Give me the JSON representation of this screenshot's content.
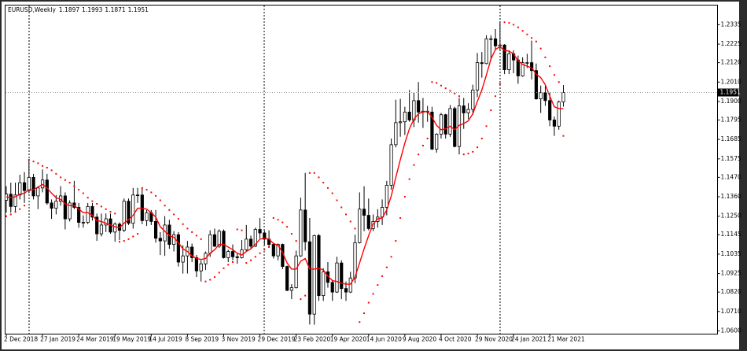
{
  "chart_data": {
    "type": "candlestick",
    "title": "EURUSD,Weekly",
    "categories": [
      "2 Dec 2018",
      null,
      null,
      null,
      null,
      null,
      null,
      null,
      "27 Jan 2019",
      null,
      null,
      null,
      null,
      null,
      null,
      null,
      "24 Mar 2019",
      null,
      null,
      null,
      null,
      null,
      null,
      null,
      "19 May 2019",
      null,
      null,
      null,
      null,
      null,
      null,
      null,
      "14 Jul 2019",
      null,
      null,
      null,
      null,
      null,
      null,
      null,
      "8 Sep 2019",
      null,
      null,
      null,
      null,
      null,
      null,
      null,
      "3 Nov 2019",
      null,
      null,
      null,
      null,
      null,
      null,
      null,
      "29 Dec 2019",
      null,
      null,
      null,
      null,
      null,
      null,
      null,
      "23 Feb 2020",
      null,
      null,
      null,
      null,
      null,
      null,
      null,
      "19 Apr 2020",
      null,
      null,
      null,
      null,
      null,
      null,
      null,
      "14 Jun 2020",
      null,
      null,
      null,
      null,
      null,
      null,
      null,
      "9 Aug 2020",
      null,
      null,
      null,
      null,
      null,
      null,
      null,
      "4 Oct 2020",
      null,
      null,
      null,
      null,
      null,
      null,
      null,
      "29 Nov 2020",
      null,
      null,
      null,
      null,
      null,
      null,
      null,
      "24 Jan 2021",
      null,
      null,
      null,
      null,
      null,
      null,
      null,
      "21 Mar 2021",
      null,
      null,
      null
    ],
    "open": [
      1.134,
      1.1375,
      1.1305,
      1.137,
      1.144,
      1.1395,
      1.147,
      1.1365,
      1.141,
      1.1455,
      1.1325,
      1.1295,
      1.1335,
      1.1365,
      1.1235,
      1.1325,
      1.13,
      1.1215,
      1.1215,
      1.1305,
      1.1245,
      1.115,
      1.12,
      1.1235,
      1.116,
      1.1205,
      1.117,
      1.1335,
      1.121,
      1.137,
      1.137,
      1.1225,
      1.127,
      1.122,
      1.1125,
      1.111,
      1.12,
      1.109,
      1.1145,
      1.099,
      1.1025,
      1.1075,
      1.1015,
      1.094,
      1.098,
      1.104,
      1.1145,
      1.108,
      1.1165,
      1.1015,
      1.105,
      1.102,
      1.1015,
      1.106,
      1.112,
      1.108,
      1.1175,
      1.1155,
      1.112,
      1.109,
      1.1025,
      1.109,
      1.0965,
      1.083,
      1.0845,
      1.1025,
      1.1285,
      1.1105,
      1.0695,
      1.114,
      1.08,
      1.0935,
      1.0875,
      1.082,
      1.0985,
      1.084,
      1.082,
      1.09,
      1.11,
      1.129,
      1.1255,
      1.118,
      1.122,
      1.1245,
      1.13,
      1.1425,
      1.1655,
      1.178,
      1.1785,
      1.184,
      1.1795,
      1.1905,
      1.184,
      1.1845,
      1.184,
      1.163,
      1.1715,
      1.1825,
      1.1715,
      1.186,
      1.1645,
      1.1875,
      1.1835,
      1.1855,
      1.1965,
      1.212,
      1.2115,
      1.2255,
      1.2255,
      1.2215,
      1.222,
      1.208,
      1.217,
      1.2135,
      1.2045,
      1.212,
      1.212,
      1.2075,
      1.1915,
      1.195,
      1.1905,
      1.1795,
      1.176,
      1.1897
    ],
    "high": [
      1.142,
      1.144,
      1.144,
      1.1485,
      1.15,
      1.157,
      1.149,
      1.142,
      1.1515,
      1.149,
      1.1345,
      1.137,
      1.142,
      1.1385,
      1.134,
      1.145,
      1.1325,
      1.1255,
      1.1325,
      1.1325,
      1.1265,
      1.1265,
      1.1265,
      1.1265,
      1.1215,
      1.1215,
      1.135,
      1.135,
      1.141,
      1.141,
      1.141,
      1.1285,
      1.1285,
      1.1285,
      1.116,
      1.125,
      1.123,
      1.1165,
      1.116,
      1.1085,
      1.111,
      1.1095,
      1.103,
      1.1,
      1.105,
      1.117,
      1.118,
      1.1175,
      1.1175,
      1.106,
      1.109,
      1.104,
      1.1115,
      1.12,
      1.114,
      1.1185,
      1.124,
      1.117,
      1.117,
      1.11,
      1.1095,
      1.1095,
      1.097,
      1.0865,
      1.1055,
      1.1355,
      1.1495,
      1.124,
      1.1145,
      1.115,
      1.0955,
      1.099,
      1.089,
      1.102,
      1.1,
      1.088,
      1.0935,
      1.1145,
      1.1385,
      1.142,
      1.135,
      1.126,
      1.129,
      1.1345,
      1.145,
      1.169,
      1.191,
      1.1915,
      1.187,
      1.1965,
      1.195,
      1.201,
      1.192,
      1.1875,
      1.187,
      1.172,
      1.1835,
      1.183,
      1.188,
      1.187,
      1.192,
      1.192,
      1.189,
      1.1995,
      1.2175,
      1.218,
      1.2275,
      1.2275,
      1.231,
      1.2349,
      1.2225,
      1.219,
      1.219,
      1.216,
      1.215,
      1.217,
      1.2245,
      1.2115,
      1.199,
      1.199,
      1.195,
      1.1815,
      1.1905,
      1.1993
    ],
    "low": [
      1.127,
      1.127,
      1.127,
      1.1345,
      1.1325,
      1.138,
      1.1345,
      1.129,
      1.1385,
      1.1315,
      1.1235,
      1.126,
      1.131,
      1.1175,
      1.122,
      1.129,
      1.1185,
      1.1185,
      1.1205,
      1.1225,
      1.111,
      1.1135,
      1.116,
      1.115,
      1.1105,
      1.1115,
      1.116,
      1.12,
      1.118,
      1.1325,
      1.1205,
      1.1195,
      1.12,
      1.11,
      1.103,
      1.1025,
      1.1065,
      1.105,
      1.0965,
      1.0925,
      1.0925,
      1.099,
      1.0905,
      1.088,
      1.0945,
      1.102,
      1.1075,
      1.107,
      1.101,
      1.099,
      1.1,
      1.098,
      1.101,
      1.105,
      1.1065,
      1.1075,
      1.1125,
      1.1085,
      1.108,
      1.101,
      1.1,
      1.095,
      1.0825,
      1.078,
      1.084,
      1.102,
      1.1055,
      1.0636,
      1.0635,
      1.077,
      1.077,
      1.0845,
      1.077,
      1.0815,
      1.078,
      1.077,
      1.0815,
      1.087,
      1.1095,
      1.1165,
      1.117,
      1.1165,
      1.1185,
      1.12,
      1.1255,
      1.14,
      1.164,
      1.17,
      1.171,
      1.1785,
      1.1755,
      1.178,
      1.175,
      1.1785,
      1.1625,
      1.161,
      1.169,
      1.169,
      1.17,
      1.164,
      1.16,
      1.1745,
      1.18,
      1.1825,
      1.1925,
      1.2035,
      1.211,
      1.213,
      1.219,
      1.219,
      1.2055,
      1.2055,
      1.206,
      1.2,
      1.204,
      1.209,
      1.2025,
      1.191,
      1.1835,
      1.1875,
      1.176,
      1.1705,
      1.174,
      1.1871
    ],
    "close": [
      1.1375,
      1.1305,
      1.137,
      1.144,
      1.1395,
      1.147,
      1.1365,
      1.141,
      1.1455,
      1.1325,
      1.1295,
      1.1335,
      1.1365,
      1.1235,
      1.1325,
      1.13,
      1.1215,
      1.1215,
      1.1305,
      1.1245,
      1.115,
      1.12,
      1.1235,
      1.116,
      1.1205,
      1.117,
      1.1335,
      1.121,
      1.137,
      1.137,
      1.1225,
      1.127,
      1.122,
      1.1125,
      1.111,
      1.12,
      1.109,
      1.1145,
      1.099,
      1.1025,
      1.1075,
      1.1015,
      1.094,
      1.098,
      1.104,
      1.1145,
      1.108,
      1.1165,
      1.1015,
      1.105,
      1.102,
      1.1015,
      1.106,
      1.112,
      1.108,
      1.1175,
      1.1155,
      1.112,
      1.109,
      1.1025,
      1.109,
      1.0965,
      1.083,
      1.0845,
      1.1025,
      1.1285,
      1.1105,
      1.0695,
      1.114,
      1.08,
      1.0935,
      1.0875,
      1.082,
      1.0985,
      1.084,
      1.082,
      1.09,
      1.11,
      1.129,
      1.1255,
      1.118,
      1.122,
      1.1245,
      1.13,
      1.1425,
      1.1655,
      1.178,
      1.1785,
      1.184,
      1.1795,
      1.1905,
      1.184,
      1.1845,
      1.184,
      1.163,
      1.1715,
      1.1825,
      1.1715,
      1.186,
      1.1645,
      1.1875,
      1.1835,
      1.1855,
      1.1965,
      1.212,
      1.2115,
      1.2255,
      1.2255,
      1.2215,
      1.222,
      1.208,
      1.217,
      1.2135,
      1.2045,
      1.212,
      1.212,
      1.2075,
      1.1915,
      1.195,
      1.1905,
      1.1795,
      1.176,
      1.1897,
      1.1951
    ],
    "up_color": "#ffffff",
    "down_color": "#000000",
    "ma": {
      "color": "#ff0000",
      "values": [
        1.136,
        1.1355,
        1.136,
        1.1375,
        1.138,
        1.14,
        1.14,
        1.1415,
        1.143,
        1.141,
        1.138,
        1.1355,
        1.1345,
        1.132,
        1.131,
        1.131,
        1.129,
        1.127,
        1.127,
        1.1255,
        1.1225,
        1.122,
        1.121,
        1.12,
        1.119,
        1.1185,
        1.121,
        1.123,
        1.1255,
        1.1295,
        1.1295,
        1.129,
        1.127,
        1.1245,
        1.119,
        1.1165,
        1.114,
        1.113,
        1.11,
        1.1065,
        1.105,
        1.1025,
        1.101,
        1.1005,
        1.101,
        1.104,
        1.106,
        1.109,
        1.109,
        1.1075,
        1.106,
        1.104,
        1.103,
        1.105,
        1.1065,
        1.109,
        1.112,
        1.1125,
        1.112,
        1.1095,
        1.1085,
        1.1045,
        1.0985,
        1.095,
        1.095,
        1.0995,
        1.101,
        1.095,
        1.095,
        1.0955,
        1.0945,
        1.091,
        1.0885,
        1.088,
        1.087,
        1.0865,
        1.0865,
        1.0905,
        1.0985,
        1.1065,
        1.114,
        1.1205,
        1.1235,
        1.124,
        1.1285,
        1.1365,
        1.147,
        1.157,
        1.1665,
        1.1745,
        1.18,
        1.183,
        1.184,
        1.1845,
        1.181,
        1.1765,
        1.174,
        1.1745,
        1.176,
        1.174,
        1.1765,
        1.1775,
        1.179,
        1.183,
        1.19,
        1.1965,
        1.205,
        1.214,
        1.2195,
        1.221,
        1.219,
        1.2185,
        1.217,
        1.213,
        1.211,
        1.21,
        1.209,
        1.2055,
        1.2035,
        1.1995,
        1.193,
        1.187,
        1.186,
        1.186
      ]
    },
    "sar": {
      "color": "#ff0000",
      "values": [
        1.125,
        1.126,
        1.1275,
        1.129,
        1.131,
        1.157,
        1.156,
        1.155,
        1.1535,
        1.1525,
        1.151,
        1.149,
        1.147,
        1.1455,
        1.144,
        1.142,
        1.14,
        1.138,
        1.1355,
        1.1335,
        1.132,
        1.1305,
        1.129,
        1.1275,
        1.1265,
        1.1105,
        1.111,
        1.112,
        1.1135,
        1.115,
        1.141,
        1.14,
        1.1385,
        1.1365,
        1.134,
        1.131,
        1.1285,
        1.126,
        1.1235,
        1.1205,
        1.118,
        1.116,
        1.114,
        1.112,
        1.088,
        1.089,
        1.0905,
        1.093,
        1.0955,
        1.0975,
        1.099,
        1.1175,
        1.117,
        1.0985,
        1.1,
        1.102,
        1.104,
        1.106,
        1.1075,
        1.124,
        1.123,
        1.1215,
        1.119,
        1.115,
        1.111,
        1.078,
        1.08,
        1.1495,
        1.1495,
        1.147,
        1.144,
        1.141,
        1.138,
        1.134,
        1.13,
        1.126,
        1.122,
        1.118,
        1.065,
        1.07,
        1.076,
        1.081,
        1.086,
        1.091,
        1.096,
        1.102,
        1.111,
        1.124,
        1.136,
        1.146,
        1.154,
        1.16,
        1.165,
        1.169,
        1.201,
        1.2005,
        1.199,
        1.1975,
        1.196,
        1.1945,
        1.193,
        1.16,
        1.1605,
        1.1615,
        1.164,
        1.169,
        1.176,
        1.185,
        1.193,
        1.2,
        1.2349,
        1.2345,
        1.2335,
        1.232,
        1.23,
        1.228,
        1.226,
        1.224,
        1.22,
        1.215,
        1.21,
        1.205,
        1.201,
        1.1705
      ]
    },
    "ylim": [
      1.0582,
      1.2446
    ],
    "yticks": [
      1.2335,
      1.2225,
      {
        "value": 1.212,
        "label": "1.2120"
      },
      {
        "value": 1.201,
        "label": "1.2010"
      },
      {
        "value": 1.19,
        "label": "1.1900"
      },
      1.1795,
      1.1685,
      1.1575,
      {
        "value": 1.147,
        "label": "1.1470"
      },
      {
        "value": 1.136,
        "label": "1.1360"
      },
      {
        "value": 1.125,
        "label": "1.1250"
      },
      1.1145,
      1.1035,
      1.0925,
      {
        "value": 1.082,
        "label": "1.0820"
      },
      {
        "value": 1.071,
        "label": "1.0710"
      },
      {
        "value": 1.06,
        "label": "1.0600"
      }
    ],
    "grid": false
  }
}
